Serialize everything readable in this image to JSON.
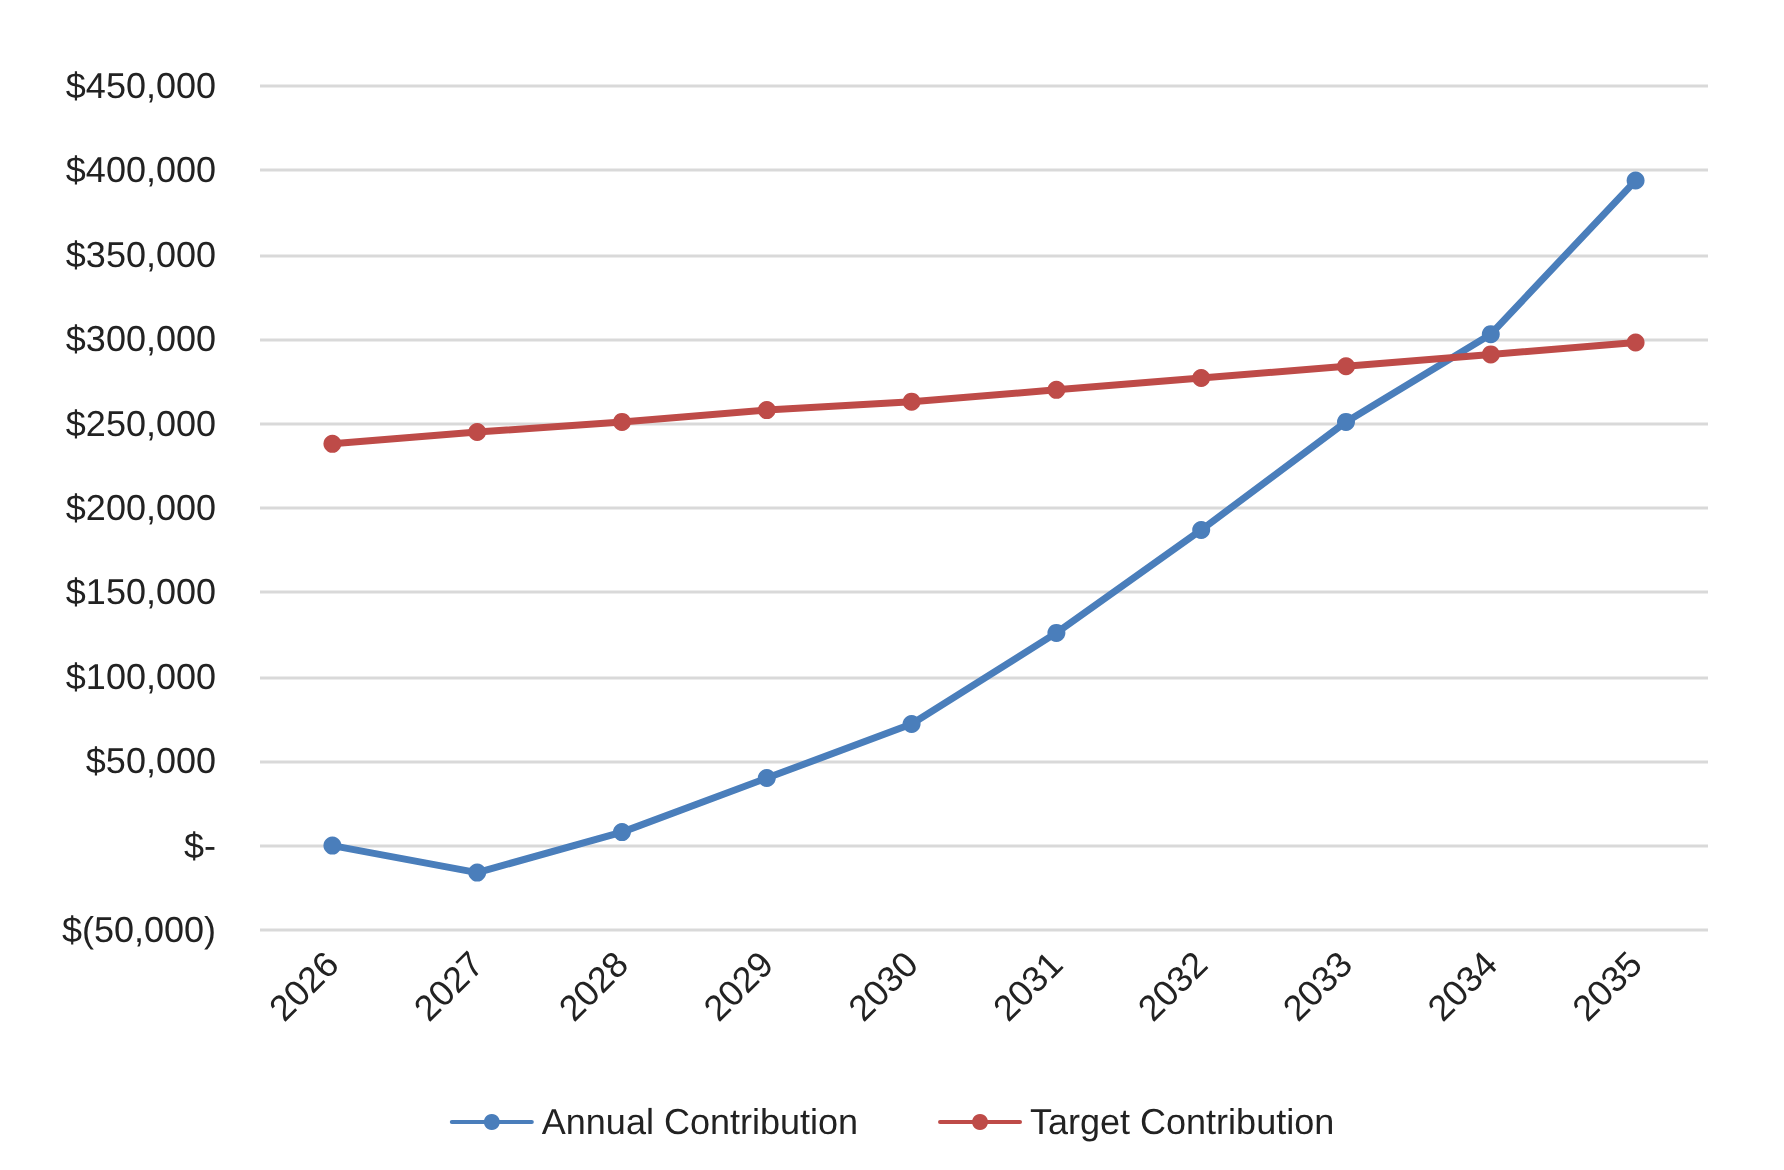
{
  "chart_data": {
    "type": "line",
    "categories": [
      "2026",
      "2027",
      "2028",
      "2029",
      "2030",
      "2031",
      "2032",
      "2033",
      "2034",
      "2035"
    ],
    "series": [
      {
        "name": "Annual Contribution",
        "color": "#4a7ebb",
        "values": [
          0,
          -16000,
          8000,
          40000,
          72000,
          126000,
          187000,
          251000,
          303000,
          394000
        ]
      },
      {
        "name": "Target Contribution",
        "color": "#be4b48",
        "values": [
          238000,
          245000,
          251000,
          258000,
          263000,
          270000,
          277000,
          284000,
          291000,
          298000
        ]
      }
    ],
    "ylim": [
      -50000,
      450000
    ],
    "yticks": [
      {
        "value": -50000,
        "label": "$(50,000)"
      },
      {
        "value": 0,
        "label": "$-"
      },
      {
        "value": 50000,
        "label": "$50,000"
      },
      {
        "value": 100000,
        "label": "$100,000"
      },
      {
        "value": 150000,
        "label": "$150,000"
      },
      {
        "value": 200000,
        "label": "$200,000"
      },
      {
        "value": 250000,
        "label": "$250,000"
      },
      {
        "value": 300000,
        "label": "$300,000"
      },
      {
        "value": 350000,
        "label": "$350,000"
      },
      {
        "value": 400000,
        "label": "$400,000"
      },
      {
        "value": 450000,
        "label": "$450,000"
      }
    ],
    "grid": "y",
    "legend": "bottom",
    "marker": "circle",
    "line_style": "solid"
  }
}
